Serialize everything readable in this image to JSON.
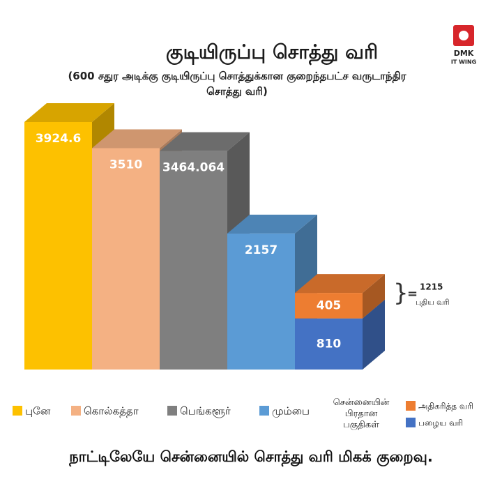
{
  "logo": {
    "line1": "DMK",
    "line2": "IT WING"
  },
  "chart_data": {
    "type": "bar3d",
    "title": "குடியிருப்பு சொத்து வரி",
    "subtitle": "(600 சதுர அடிக்கு குடியிருப்பு சொத்துக்கான குறைந்தபட்ச வருடாந்திர சொத்து வரி)",
    "categories": [
      "புனே",
      "கொல்கத்தா",
      "பெங்களூர்",
      "மும்பை",
      "சென்னையின் பிரதான பகுதிகள்"
    ],
    "colors": [
      "#fdc100",
      "#f4b183",
      "#7f7f7f",
      "#5b9bd5",
      null
    ],
    "values": [
      3924.6,
      3510,
      3464.064,
      2157,
      null
    ],
    "stack": [
      {
        "name": "பழைய வரி",
        "color": "#4472c4",
        "value": 810
      },
      {
        "name": "அதிகரித்த வரி",
        "color": "#ed7d31",
        "value": 405
      }
    ],
    "annotation": {
      "sign": "=",
      "value": 1215,
      "label": "புதிய வரி"
    },
    "footer": "நாட்டிலேயே சென்னையில் சொத்து வரி மிகக் குறைவு."
  }
}
